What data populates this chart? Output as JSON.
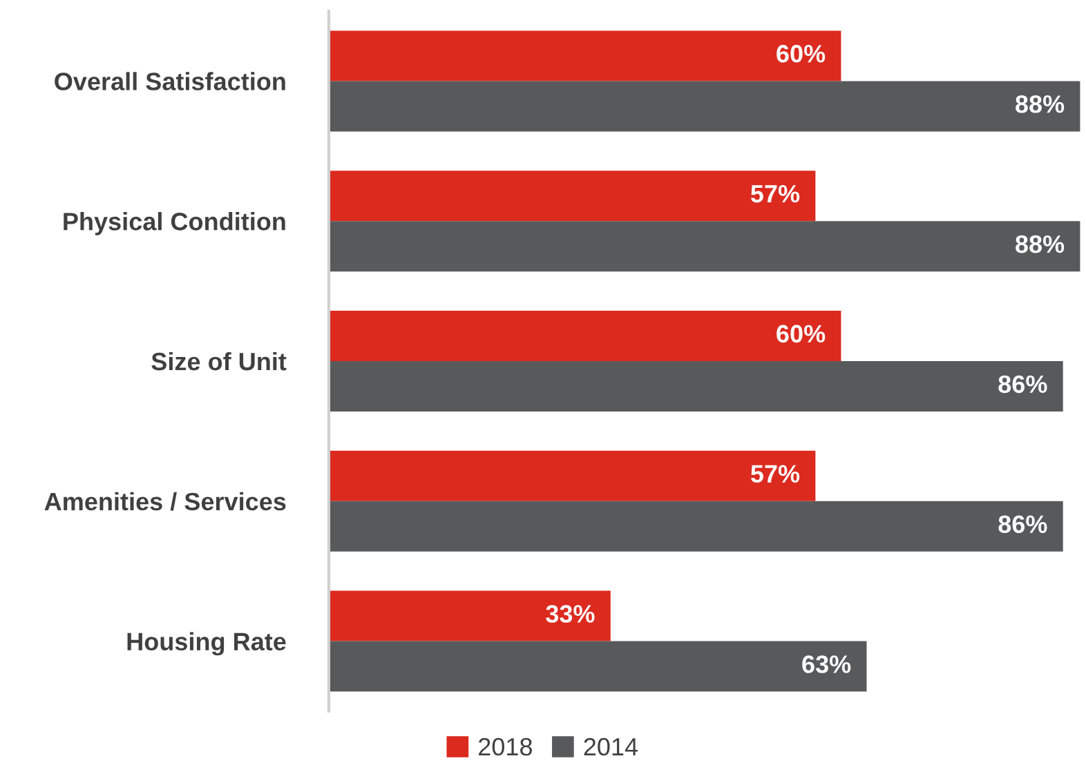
{
  "chart_data": {
    "type": "bar",
    "orientation": "horizontal",
    "categories": [
      "Overall Satisfaction",
      "Physical Condition",
      "Size of Unit",
      "Amenities / Services",
      "Housing Rate"
    ],
    "series": [
      {
        "name": "2018",
        "color": "#dc2a1f",
        "values": [
          60,
          57,
          60,
          57,
          33
        ],
        "value_labels": [
          "60%",
          "57%",
          "60%",
          "57%",
          "33%"
        ]
      },
      {
        "name": "2014",
        "color": "#58595b",
        "values": [
          88,
          88,
          86,
          86,
          63
        ],
        "value_labels": [
          "88%",
          "88%",
          "86%",
          "86%",
          "63%"
        ]
      }
    ],
    "legend": "bottom"
  }
}
